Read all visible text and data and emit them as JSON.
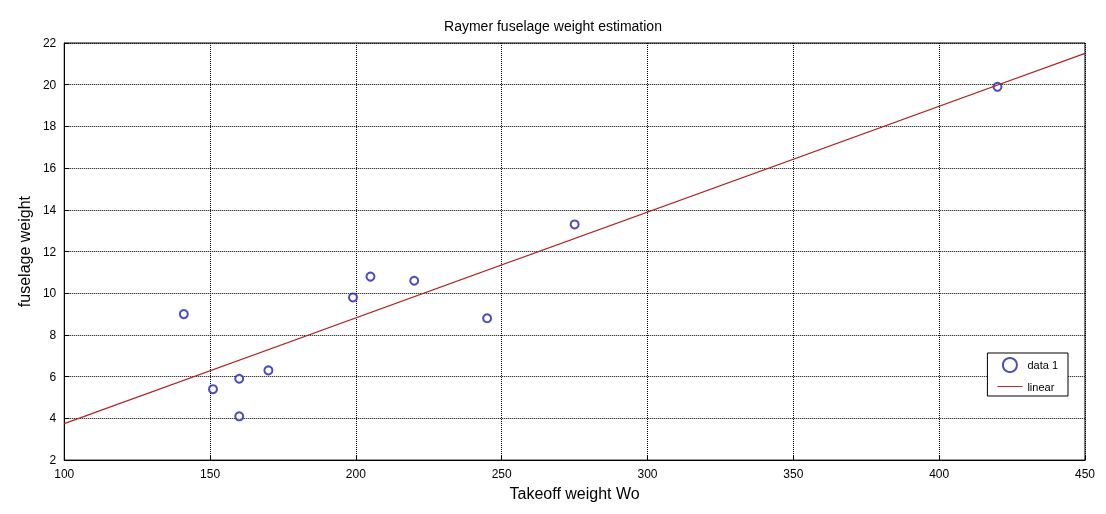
{
  "chart_data": {
    "type": "scatter",
    "title": "Raymer fuselage weight estimation",
    "xlabel": "Takeoff weight Wo",
    "ylabel": "fuselage weight",
    "xlim": [
      100,
      450
    ],
    "xticks": [
      100,
      150,
      200,
      250,
      300,
      350,
      400,
      450
    ],
    "ylim": [
      2,
      22
    ],
    "yticks": [
      2,
      4,
      6,
      8,
      10,
      12,
      14,
      16,
      18,
      20,
      22
    ],
    "grid": true,
    "legend": "bottom right",
    "series": [
      {
        "name": "data 1",
        "marker": "circle",
        "color": "#1f1fb4",
        "x": [
          141,
          151,
          160,
          160,
          170,
          199,
          205,
          220,
          245,
          275,
          420
        ],
        "values": [
          9.0,
          5.4,
          5.9,
          4.1,
          6.3,
          9.8,
          10.8,
          10.6,
          8.8,
          13.3,
          19.9
        ]
      },
      {
        "name": "linear",
        "type": "line",
        "marker": "none",
        "line_style": "solid",
        "color": "#b22222",
        "x": [
          100,
          450
        ],
        "values": [
          3.75,
          21.5
        ]
      }
    ]
  }
}
